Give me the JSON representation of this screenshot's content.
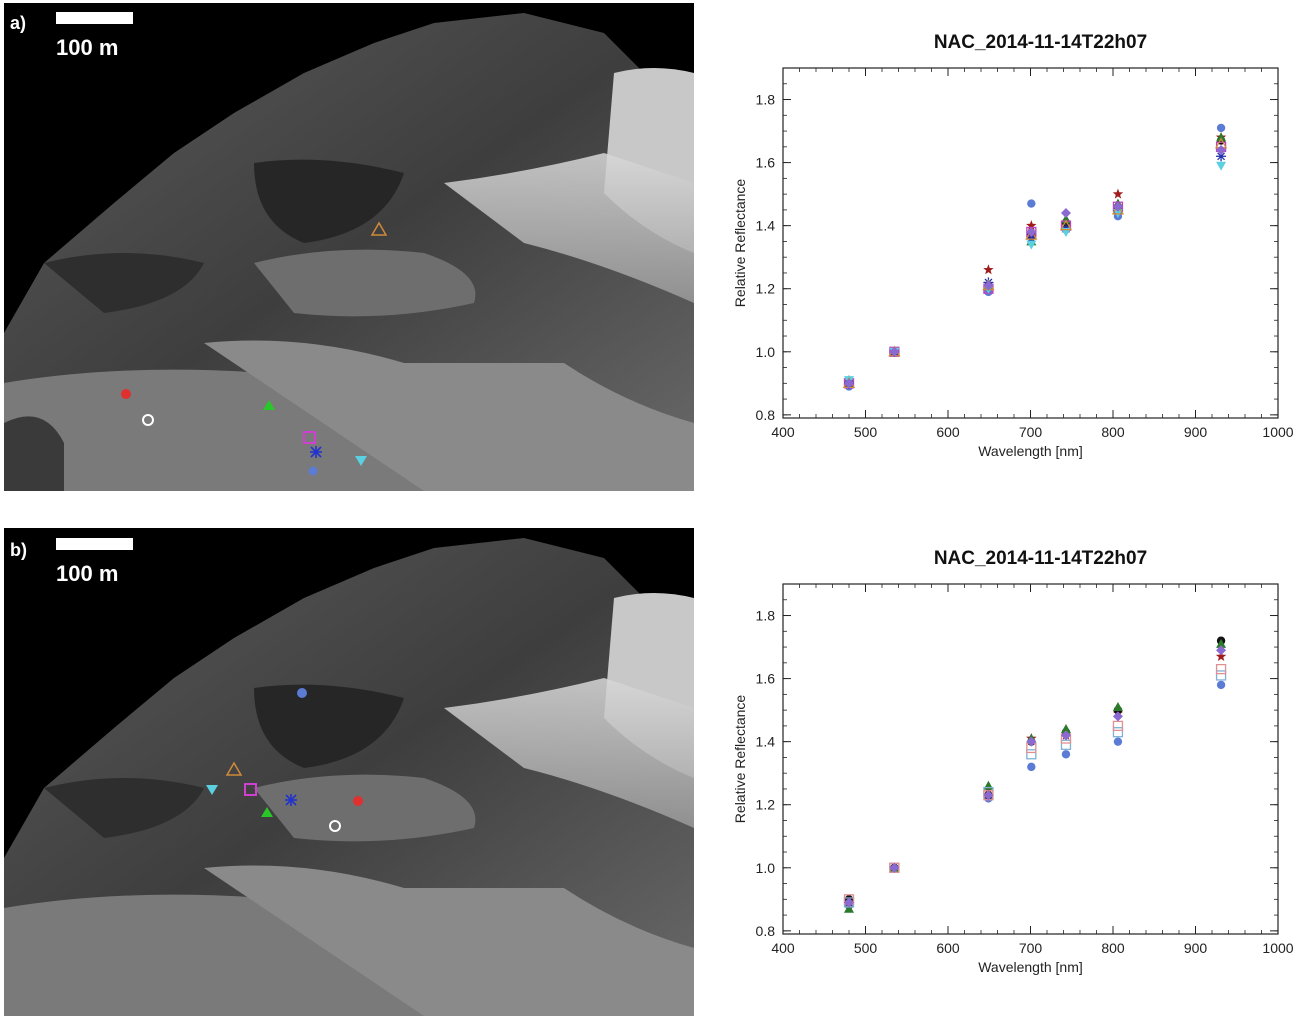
{
  "panels": [
    {
      "letter": "a)",
      "scale_label": "100 m"
    },
    {
      "letter": "b)",
      "scale_label": "100 m"
    }
  ],
  "chart_data": [
    {
      "type": "scatter",
      "title": "NAC_2014-11-14T22h07",
      "xlabel": "Wavelength [nm]",
      "ylabel": "Relative Reflectance",
      "xlim": [
        400,
        1000
      ],
      "ylim": [
        0.79,
        1.9
      ],
      "xticks": [
        400,
        500,
        600,
        700,
        800,
        900,
        1000
      ],
      "yticks": [
        0.8,
        1.0,
        1.2,
        1.4,
        1.6,
        1.8
      ],
      "x": [
        480,
        535,
        649,
        701,
        743,
        806,
        931
      ],
      "series": [
        {
          "marker": "circle-filled",
          "color": "#5b7bd5",
          "values": [
            0.89,
            1.0,
            1.19,
            1.47,
            1.39,
            1.43,
            1.71
          ]
        },
        {
          "marker": "star",
          "color": "#a01c1c",
          "values": [
            0.9,
            1.0,
            1.26,
            1.4,
            1.41,
            1.5,
            1.68
          ]
        },
        {
          "marker": "circle-filled",
          "color": "#111111",
          "values": [
            0.9,
            1.0,
            1.21,
            1.37,
            1.41,
            1.46,
            1.67
          ]
        },
        {
          "marker": "triangle-filled",
          "color": "#2a7a2a",
          "values": [
            0.91,
            1.0,
            1.21,
            1.35,
            1.42,
            1.47,
            1.68
          ]
        },
        {
          "marker": "square-open",
          "color": "#c040c0",
          "values": [
            0.9,
            1.0,
            1.2,
            1.38,
            1.4,
            1.46,
            1.65
          ]
        },
        {
          "marker": "asterisk",
          "color": "#2233aa",
          "values": [
            0.9,
            1.0,
            1.22,
            1.36,
            1.39,
            1.45,
            1.62
          ]
        },
        {
          "marker": "triangle-down-filled",
          "color": "#5ad0e0",
          "values": [
            0.91,
            1.0,
            1.2,
            1.34,
            1.38,
            1.44,
            1.59
          ]
        },
        {
          "marker": "triangle-open",
          "color": "#d08a3a",
          "values": [
            0.9,
            1.0,
            1.21,
            1.37,
            1.4,
            1.45,
            1.66
          ]
        },
        {
          "marker": "diamond-filled",
          "color": "#8a6ad0",
          "values": [
            0.9,
            1.0,
            1.21,
            1.38,
            1.44,
            1.46,
            1.64
          ]
        }
      ]
    },
    {
      "type": "scatter",
      "title": "NAC_2014-11-14T22h07",
      "xlabel": "Wavelength [nm]",
      "ylabel": "Relative Reflectance",
      "xlim": [
        400,
        1000
      ],
      "ylim": [
        0.79,
        1.9
      ],
      "xticks": [
        400,
        500,
        600,
        700,
        800,
        900,
        1000
      ],
      "yticks": [
        0.8,
        1.0,
        1.2,
        1.4,
        1.6,
        1.8
      ],
      "x": [
        480,
        535,
        649,
        701,
        743,
        806,
        931
      ],
      "series": [
        {
          "marker": "circle-filled",
          "color": "#5b7bd5",
          "values": [
            0.88,
            1.0,
            1.22,
            1.32,
            1.36,
            1.4,
            1.58
          ]
        },
        {
          "marker": "star",
          "color": "#a01c1c",
          "values": [
            0.89,
            1.0,
            1.25,
            1.41,
            1.42,
            1.49,
            1.67
          ]
        },
        {
          "marker": "circle-filled",
          "color": "#111111",
          "values": [
            0.9,
            1.0,
            1.23,
            1.4,
            1.43,
            1.5,
            1.72
          ]
        },
        {
          "marker": "triangle-filled",
          "color": "#2a7a2a",
          "values": [
            0.87,
            1.0,
            1.26,
            1.41,
            1.44,
            1.51,
            1.71
          ]
        },
        {
          "marker": "square-open",
          "color": "#7fb0d8",
          "values": [
            0.89,
            1.0,
            1.24,
            1.36,
            1.39,
            1.43,
            1.61
          ]
        },
        {
          "marker": "square-open",
          "color": "#e09090",
          "values": [
            0.9,
            1.0,
            1.23,
            1.38,
            1.41,
            1.45,
            1.63
          ]
        },
        {
          "marker": "diamond-filled",
          "color": "#8a6ad0",
          "values": [
            0.89,
            1.0,
            1.23,
            1.4,
            1.42,
            1.48,
            1.69
          ]
        }
      ]
    }
  ]
}
